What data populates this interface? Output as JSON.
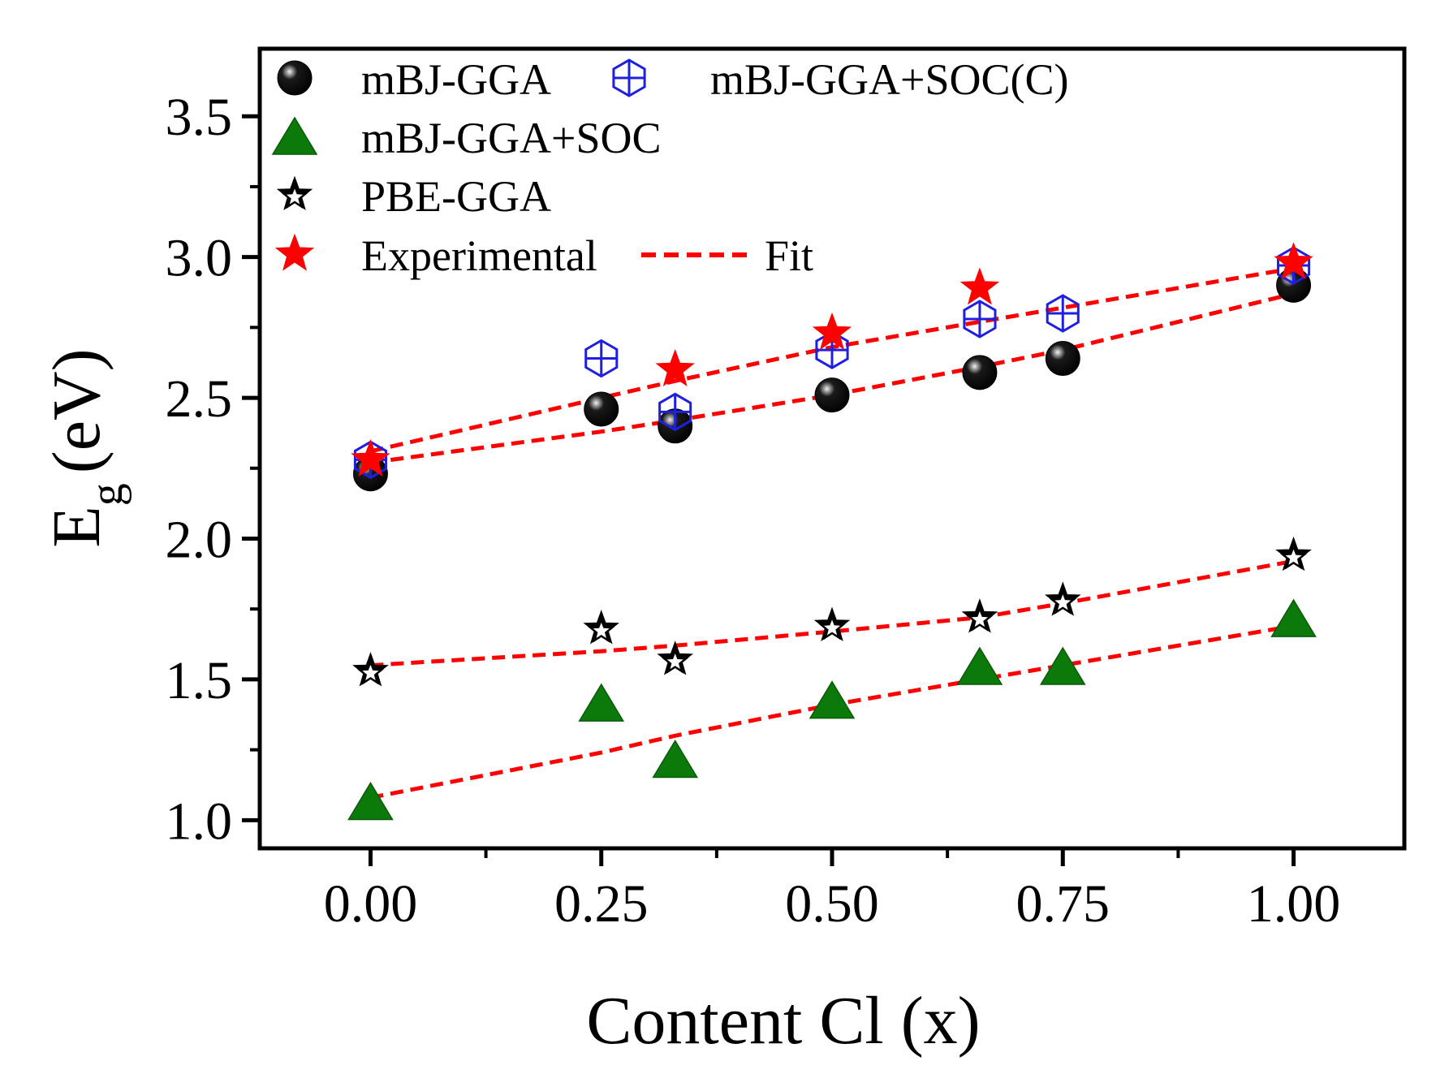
{
  "chart_data": {
    "type": "scatter",
    "xlabel": "Content Cl (x)",
    "ylabel_main": "E",
    "ylabel_sub": "g",
    "ylabel_unit": "(eV)",
    "xlim": [
      -0.12,
      1.12
    ],
    "ylim": [
      0.9,
      3.74
    ],
    "x_ticks": [
      0.0,
      0.25,
      0.5,
      0.75,
      1.0
    ],
    "x_tick_labels": [
      "0.00",
      "0.25",
      "0.50",
      "0.75",
      "1.00"
    ],
    "y_ticks": [
      1.0,
      1.5,
      2.0,
      2.5,
      3.0,
      3.5
    ],
    "y_tick_labels": [
      "1.0",
      "1.5",
      "2.0",
      "2.5",
      "3.0",
      "3.5"
    ],
    "grid": false,
    "legend_position": "top-left",
    "colors": {
      "mbj": "#000000",
      "soc": "#0b7a0b",
      "socc": "#1f1fe0",
      "pbe": "#000000",
      "exp": "#ff0000",
      "fit": "#ff0000"
    },
    "series": [
      {
        "name": "mBJ-GGA",
        "marker": "sphere",
        "x": [
          0,
          0.25,
          0.33,
          0.5,
          0.66,
          0.75,
          1.0
        ],
        "y": [
          2.23,
          2.46,
          2.4,
          2.51,
          2.59,
          2.64,
          2.9
        ]
      },
      {
        "name": "mBJ-GGA+SOC(C)",
        "marker": "hex-cross",
        "x": [
          0,
          0.25,
          0.33,
          0.5,
          0.66,
          0.75,
          1.0
        ],
        "y": [
          2.28,
          2.64,
          2.45,
          2.67,
          2.78,
          2.8,
          2.97
        ]
      },
      {
        "name": "mBJ-GGA+SOC",
        "marker": "triangle",
        "x": [
          0,
          0.25,
          0.33,
          0.5,
          0.66,
          0.75,
          1.0
        ],
        "y": [
          1.06,
          1.41,
          1.21,
          1.42,
          1.54,
          1.54,
          1.71
        ]
      },
      {
        "name": "PBE-GGA",
        "marker": "star-outline",
        "x": [
          0,
          0.25,
          0.33,
          0.5,
          0.66,
          0.75,
          1.0
        ],
        "y": [
          1.53,
          1.68,
          1.57,
          1.69,
          1.72,
          1.78,
          1.94
        ]
      },
      {
        "name": "Experimental",
        "marker": "star-filled",
        "x": [
          0,
          0.33,
          0.5,
          0.66,
          1.0
        ],
        "y": [
          2.28,
          2.6,
          2.73,
          2.89,
          2.98
        ]
      }
    ],
    "fits": [
      {
        "name": "Fit",
        "x": [
          0,
          0.25,
          0.33,
          0.5,
          0.66,
          0.75,
          1.0
        ],
        "y": [
          2.31,
          2.5,
          2.56,
          2.68,
          2.77,
          2.82,
          2.96
        ]
      },
      {
        "name": "Fit",
        "x": [
          0,
          0.25,
          0.33,
          0.5,
          0.66,
          0.75,
          1.0
        ],
        "y": [
          2.27,
          2.38,
          2.42,
          2.51,
          2.61,
          2.67,
          2.87
        ]
      },
      {
        "name": "Fit",
        "x": [
          0,
          0.25,
          0.33,
          0.5,
          0.66,
          0.75,
          1.0
        ],
        "y": [
          1.55,
          1.6,
          1.62,
          1.67,
          1.72,
          1.77,
          1.92
        ]
      },
      {
        "name": "Fit",
        "x": [
          0,
          0.25,
          0.33,
          0.5,
          0.66,
          0.75,
          1.0
        ],
        "y": [
          1.08,
          1.24,
          1.3,
          1.41,
          1.5,
          1.55,
          1.69
        ]
      }
    ],
    "legend": {
      "mbj": "mBJ-GGA",
      "socc": "mBJ-GGA+SOC(C)",
      "soc": "mBJ-GGA+SOC",
      "pbe": "PBE-GGA",
      "exp": "Experimental",
      "fit": "Fit"
    }
  }
}
